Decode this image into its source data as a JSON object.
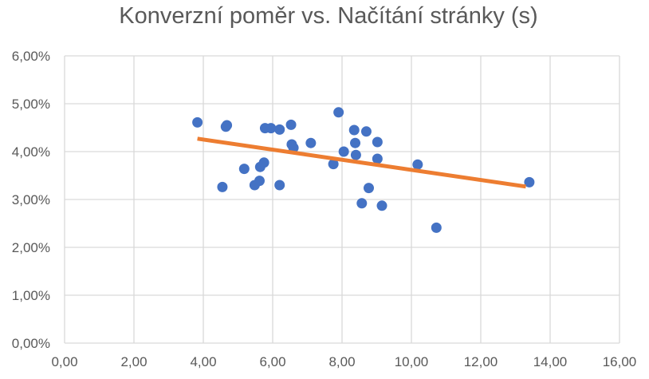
{
  "chart_data": {
    "type": "scatter",
    "title": "Konverzní poměr vs. Načítání stránky (s)",
    "xlabel": "",
    "ylabel": "",
    "xlim": [
      0,
      16
    ],
    "ylim": [
      0,
      0.06
    ],
    "x_ticks": [
      0,
      2,
      4,
      6,
      8,
      10,
      12,
      14,
      16
    ],
    "x_tick_labels": [
      "0,00",
      "2,00",
      "4,00",
      "6,00",
      "8,00",
      "10,00",
      "12,00",
      "14,00",
      "16,00"
    ],
    "y_ticks": [
      0,
      0.01,
      0.02,
      0.03,
      0.04,
      0.05,
      0.06
    ],
    "y_tick_labels": [
      "0,00%",
      "1,00%",
      "2,00%",
      "3,00%",
      "4,00%",
      "5,00%",
      "6,00%"
    ],
    "grid": true,
    "legend": "none",
    "colors": {
      "points": "#4472C4",
      "trendline": "#ED7D31",
      "grid": "#D9D9D9",
      "text": "#595959"
    },
    "series": [
      {
        "type": "scatter",
        "points": [
          [
            3.83,
            0.0461
          ],
          [
            4.55,
            0.0326
          ],
          [
            4.65,
            0.0452
          ],
          [
            4.68,
            0.0455
          ],
          [
            5.18,
            0.0364
          ],
          [
            5.48,
            0.033
          ],
          [
            5.62,
            0.0339
          ],
          [
            5.64,
            0.0368
          ],
          [
            5.75,
            0.0377
          ],
          [
            5.78,
            0.0449
          ],
          [
            5.95,
            0.0449
          ],
          [
            6.2,
            0.0446
          ],
          [
            6.2,
            0.033
          ],
          [
            6.53,
            0.0456
          ],
          [
            6.55,
            0.0415
          ],
          [
            6.6,
            0.0408
          ],
          [
            7.1,
            0.0418
          ],
          [
            7.75,
            0.0374
          ],
          [
            7.9,
            0.0482
          ],
          [
            8.05,
            0.04
          ],
          [
            8.35,
            0.0445
          ],
          [
            8.38,
            0.0418
          ],
          [
            8.4,
            0.0393
          ],
          [
            8.57,
            0.0292
          ],
          [
            8.7,
            0.0442
          ],
          [
            8.77,
            0.0324
          ],
          [
            9.02,
            0.042
          ],
          [
            9.02,
            0.0385
          ],
          [
            9.15,
            0.0287
          ],
          [
            10.18,
            0.0373
          ],
          [
            10.72,
            0.0241
          ],
          [
            13.4,
            0.0336
          ]
        ]
      },
      {
        "type": "trendline",
        "points": [
          [
            3.83,
            0.0427
          ],
          [
            13.3,
            0.0327
          ]
        ]
      }
    ]
  }
}
